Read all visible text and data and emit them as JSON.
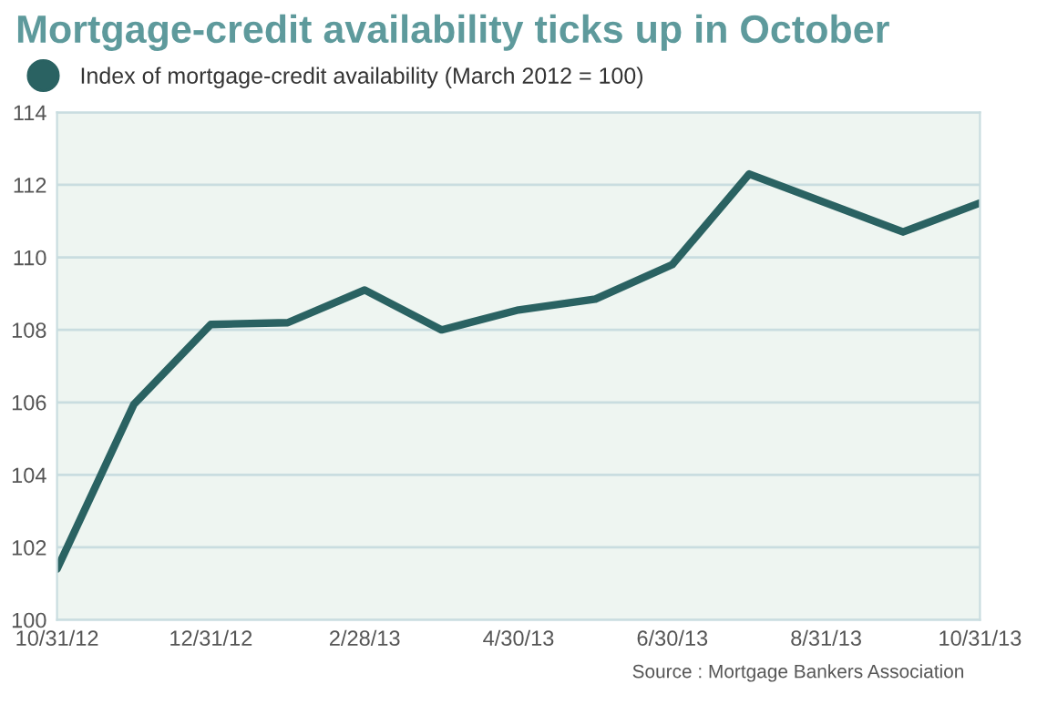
{
  "chart_data": {
    "type": "line",
    "title": "Mortgage-credit availability ticks up in October",
    "categories": [
      "10/31/12",
      null,
      "12/31/12",
      null,
      "2/28/13",
      null,
      "4/30/13",
      null,
      "6/30/13",
      null,
      "8/31/13",
      null,
      "10/31/13"
    ],
    "series": [
      {
        "name": "Index of mortgage-credit availability (March 2012 = 100)",
        "color": "#2a6262",
        "values": [
          101.4,
          105.95,
          108.15,
          108.2,
          109.1,
          108.0,
          108.55,
          108.85,
          109.8,
          112.3,
          111.5,
          110.7,
          111.5
        ]
      }
    ],
    "ylim": [
      100,
      114
    ],
    "yticks": [
      100,
      102,
      104,
      106,
      108,
      110,
      112,
      114
    ],
    "grid": "y",
    "legend": "top left",
    "marker": "none",
    "line_style": "solid",
    "annotations": [
      "Source : Mortgage Bankers Association"
    ]
  }
}
